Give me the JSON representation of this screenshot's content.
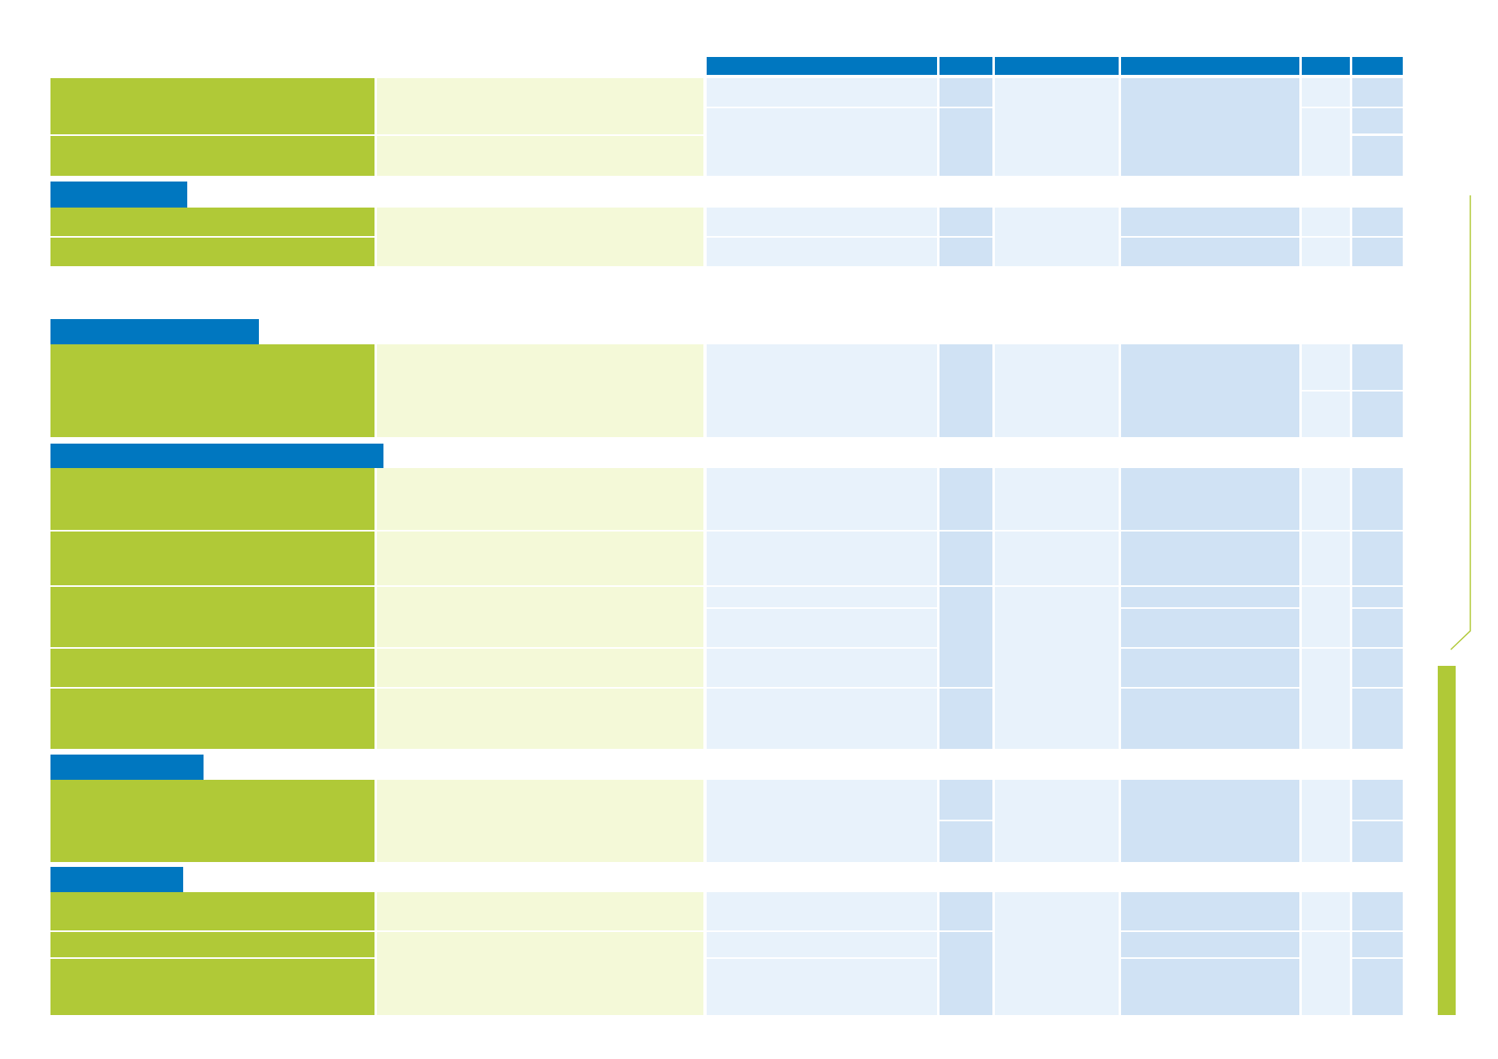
{
  "document": {
    "header_columns": [
      "",
      "",
      "",
      "",
      "",
      ""
    ],
    "sections": [
      {
        "title": "",
        "rows": 2
      },
      {
        "title": "",
        "rows": 2
      },
      {
        "title": "",
        "rows": 1
      },
      {
        "title": "",
        "rows": 5
      },
      {
        "title": "",
        "rows": 1
      },
      {
        "title": "",
        "rows": 3
      }
    ]
  },
  "colors": {
    "header_blue": "#0077c0",
    "row_green": "#b0c937",
    "row_light_green": "#f4f9d8",
    "cell_light_blue": "#e8f2fb",
    "cell_mid_blue": "#d0e2f4"
  }
}
